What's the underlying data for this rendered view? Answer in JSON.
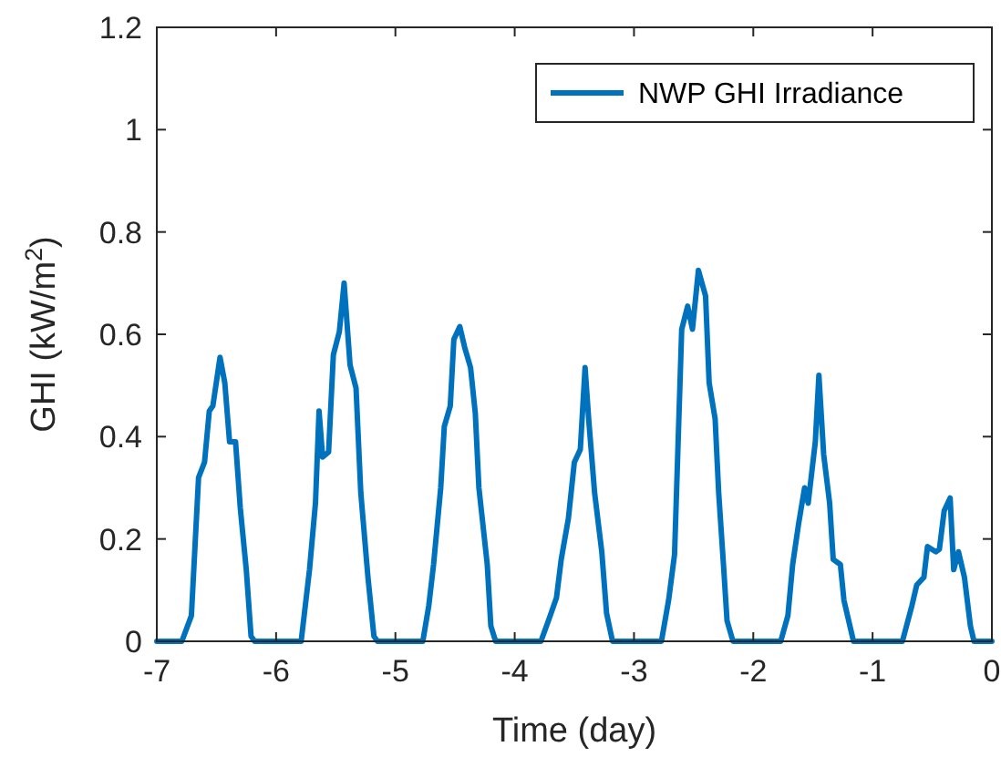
{
  "chart_data": {
    "type": "line",
    "xlabel": "Time (day)",
    "ylabel": "GHI (kW/m$^{2}$)",
    "xlim": [
      -7,
      0
    ],
    "ylim": [
      0,
      1.2
    ],
    "xticks": [
      -7,
      -6,
      -5,
      -4,
      -3,
      -2,
      -1,
      0
    ],
    "yticks": [
      0,
      0.2,
      0.4,
      0.6,
      0.8,
      1,
      1.2
    ],
    "grid": false,
    "legend": "top right",
    "line_style": "solid",
    "marker": "none",
    "series": [
      {
        "name": "NWP GHI Irradiance",
        "color": "#0072bd",
        "x": [
          -7,
          -6.79,
          -6.71,
          -6.65,
          -6.6,
          -6.56,
          -6.53,
          -6.47,
          -6.43,
          -6.39,
          -6.34,
          -6.3,
          -6.25,
          -6.21,
          -6.18,
          -5.79,
          -5.72,
          -5.67,
          -5.64,
          -5.61,
          -5.56,
          -5.52,
          -5.47,
          -5.43,
          -5.38,
          -5.33,
          -5.29,
          -5.23,
          -5.18,
          -5.15,
          -4.77,
          -4.72,
          -4.68,
          -4.62,
          -4.59,
          -4.54,
          -4.51,
          -4.46,
          -4.42,
          -4.37,
          -4.33,
          -4.3,
          -4.23,
          -4.2,
          -4.16,
          -3.78,
          -3.71,
          -3.65,
          -3.61,
          -3.55,
          -3.5,
          -3.45,
          -3.41,
          -3.38,
          -3.33,
          -3.27,
          -3.23,
          -3.18,
          -2.77,
          -2.71,
          -2.66,
          -2.63,
          -2.6,
          -2.55,
          -2.51,
          -2.46,
          -2.4,
          -2.37,
          -2.32,
          -2.29,
          -2.25,
          -2.22,
          -2.17,
          -1.77,
          -1.71,
          -1.67,
          -1.62,
          -1.57,
          -1.54,
          -1.48,
          -1.45,
          -1.41,
          -1.36,
          -1.33,
          -1.27,
          -1.24,
          -1.18,
          -1.16,
          -0.75,
          -0.67,
          -0.63,
          -0.57,
          -0.54,
          -0.47,
          -0.44,
          -0.4,
          -0.35,
          -0.32,
          -0.28,
          -0.23,
          -0.18,
          -0.15,
          0
        ],
        "values": [
          0,
          0,
          0.05,
          0.32,
          0.35,
          0.45,
          0.46,
          0.555,
          0.505,
          0.39,
          0.39,
          0.26,
          0.14,
          0.01,
          0,
          0,
          0.14,
          0.27,
          0.45,
          0.36,
          0.37,
          0.56,
          0.605,
          0.7,
          0.54,
          0.495,
          0.29,
          0.125,
          0.01,
          0,
          0,
          0.07,
          0.15,
          0.3,
          0.42,
          0.46,
          0.59,
          0.615,
          0.575,
          0.535,
          0.445,
          0.3,
          0.15,
          0.03,
          0,
          0,
          0.045,
          0.085,
          0.16,
          0.24,
          0.35,
          0.375,
          0.535,
          0.435,
          0.29,
          0.175,
          0.055,
          0,
          0,
          0.08,
          0.17,
          0.39,
          0.61,
          0.655,
          0.61,
          0.725,
          0.675,
          0.505,
          0.435,
          0.29,
          0.15,
          0.04,
          0,
          0,
          0.05,
          0.15,
          0.23,
          0.3,
          0.27,
          0.39,
          0.52,
          0.365,
          0.27,
          0.16,
          0.15,
          0.08,
          0.02,
          0,
          0,
          0.07,
          0.11,
          0.125,
          0.185,
          0.175,
          0.18,
          0.255,
          0.28,
          0.14,
          0.175,
          0.125,
          0.03,
          0,
          0
        ]
      }
    ]
  }
}
